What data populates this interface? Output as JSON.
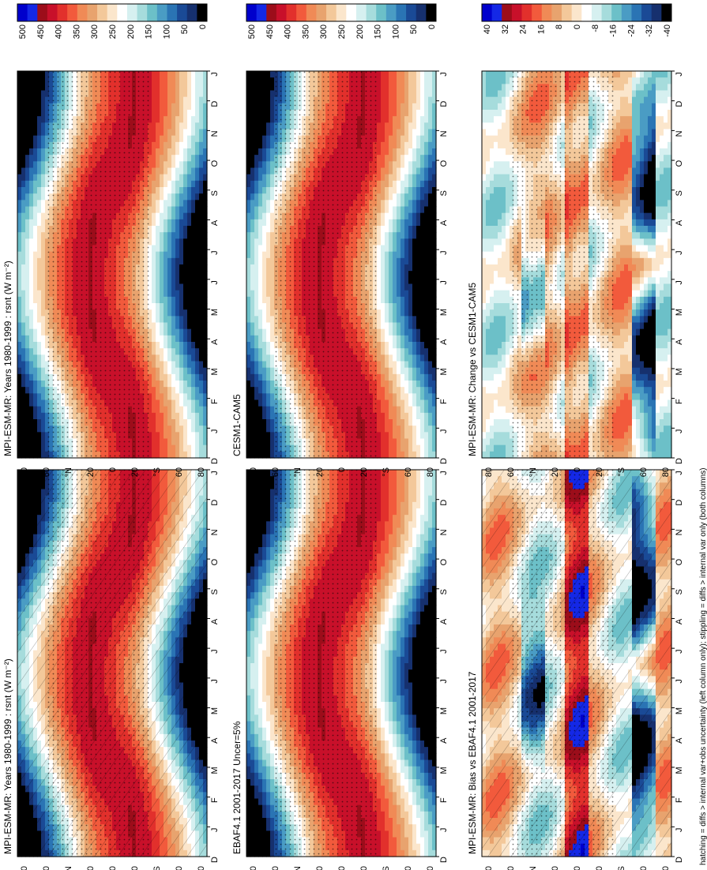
{
  "figure": {
    "footer": "hatching = diffs > internal var+obs uncertainty (left column only); stippling = diffs > internal var only (both columns)"
  },
  "colorbars": {
    "absolute": {
      "labels": [
        "500",
        "450",
        "400",
        "350",
        "300",
        "250",
        "200",
        "150",
        "100",
        "50",
        "0"
      ],
      "colors": [
        "#0000cc",
        "#1428e6",
        "#9c0d1a",
        "#c8102a",
        "#e2302c",
        "#f25a3c",
        "#f08a56",
        "#e8a36e",
        "#f3c89a",
        "#fbe6cc",
        "#ffffff",
        "#d6f0f0",
        "#a6dcdc",
        "#6cc0c8",
        "#4a9cc4",
        "#2a74b4",
        "#1a4a96",
        "#16306e",
        "#000000"
      ]
    },
    "difference": {
      "labels": [
        "40",
        "32",
        "24",
        "16",
        "8",
        "0",
        "-8",
        "-16",
        "-24",
        "-32",
        "-40"
      ],
      "colors": [
        "#0000cc",
        "#1428e6",
        "#9c0d1a",
        "#c8102a",
        "#e2302c",
        "#f25a3c",
        "#f08a56",
        "#e8a36e",
        "#f3c89a",
        "#fbe6cc",
        "#ffffff",
        "#d6f0f0",
        "#a6dcdc",
        "#6cc0c8",
        "#4a9cc4",
        "#2a74b4",
        "#1a4a96",
        "#16306e",
        "#000000"
      ]
    }
  },
  "axes": {
    "months": [
      "D",
      "J",
      "F",
      "M",
      "A",
      "M",
      "J",
      "J",
      "A",
      "S",
      "O",
      "N",
      "D",
      "J"
    ],
    "lats": [
      "80",
      "60",
      "°N",
      "20",
      "0",
      "20",
      "°S",
      "60",
      "80"
    ]
  },
  "panels": [
    {
      "title": "MPI-ESM-MR: Years 1980-1999 : rsnt (W m⁻²)",
      "kind": "absolute",
      "hatch": true
    },
    {
      "title": "EBAF4.1 2001-2017 Uncer=5%",
      "kind": "absolute",
      "hatch": false
    },
    {
      "title": "MPI-ESM-MR: Bias vs EBAF4.1 2001-2017",
      "kind": "difference",
      "hatch": true
    },
    {
      "title": "MPI-ESM-MR: Years 1980-1999 : rsnt (W m⁻²)",
      "kind": "absolute",
      "hatch": false
    },
    {
      "title": "CESM1-CAM5",
      "kind": "absolute",
      "hatch": false
    },
    {
      "title": "MPI-ESM-MR: Change vs CESM1-CAM5",
      "kind": "difference",
      "hatch": false
    }
  ],
  "chart_data": [
    {
      "type": "heatmap",
      "title": "MPI-ESM-MR: Years 1980-1999 : rsnt (W m⁻²)",
      "x": [
        "D",
        "J",
        "F",
        "M",
        "A",
        "M",
        "J",
        "J",
        "A",
        "S",
        "O",
        "N",
        "D",
        "J"
      ],
      "y": [
        "80",
        "60",
        "°N",
        "20",
        "0",
        "20",
        "°S",
        "60",
        "80"
      ],
      "zlim": [
        0,
        500
      ],
      "pattern": "seasonal TOA net shortwave: max ~450 near 20-40°S in Dec/Jan and ~20-30°N in Jun/Jul; <50 over winter pole"
    },
    {
      "type": "heatmap",
      "title": "EBAF4.1 2001-2017 Uncer=5%",
      "x": [
        "D",
        "J",
        "F",
        "M",
        "A",
        "M",
        "J",
        "J",
        "A",
        "S",
        "O",
        "N",
        "D",
        "J"
      ],
      "y": [
        "80",
        "60",
        "°N",
        "20",
        "0",
        "20",
        "°S",
        "60",
        "80"
      ],
      "zlim": [
        0,
        500
      ]
    },
    {
      "type": "heatmap",
      "title": "MPI-ESM-MR: Bias vs EBAF4.1 2001-2017",
      "x": [
        "D",
        "J",
        "F",
        "M",
        "A",
        "M",
        "J",
        "J",
        "A",
        "S",
        "O",
        "N",
        "D",
        "J"
      ],
      "y": [
        "80",
        "60",
        "°N",
        "20",
        "0",
        "20",
        "°S",
        "60",
        "80"
      ],
      "zlim": [
        -40,
        40
      ]
    },
    {
      "type": "heatmap",
      "title": "MPI-ESM-MR: Years 1980-1999 : rsnt (W m⁻²)",
      "x": [
        "D",
        "J",
        "F",
        "M",
        "A",
        "M",
        "J",
        "J",
        "A",
        "S",
        "O",
        "N",
        "D",
        "J"
      ],
      "y": [
        "80",
        "60",
        "°N",
        "20",
        "0",
        "20",
        "°S",
        "60",
        "80"
      ],
      "zlim": [
        0,
        500
      ]
    },
    {
      "type": "heatmap",
      "title": "CESM1-CAM5",
      "x": [
        "D",
        "J",
        "F",
        "M",
        "A",
        "M",
        "J",
        "J",
        "A",
        "S",
        "O",
        "N",
        "D",
        "J"
      ],
      "y": [
        "80",
        "60",
        "°N",
        "20",
        "0",
        "20",
        "°S",
        "60",
        "80"
      ],
      "zlim": [
        0,
        500
      ]
    },
    {
      "type": "heatmap",
      "title": "MPI-ESM-MR: Change vs CESM1-CAM5",
      "x": [
        "D",
        "J",
        "F",
        "M",
        "A",
        "M",
        "J",
        "J",
        "A",
        "S",
        "O",
        "N",
        "D",
        "J"
      ],
      "y": [
        "80",
        "60",
        "°N",
        "20",
        "0",
        "20",
        "°S",
        "60",
        "80"
      ],
      "zlim": [
        -40,
        40
      ]
    }
  ]
}
